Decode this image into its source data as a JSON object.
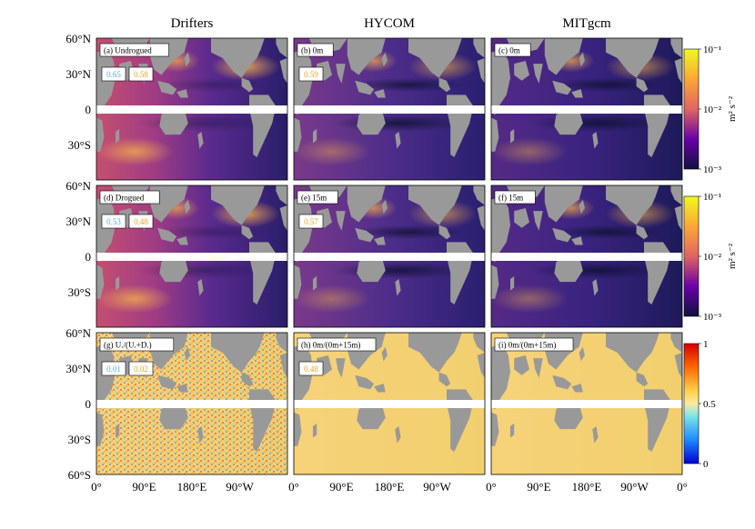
{
  "chart_data": {
    "type": "heatmap",
    "column_titles": [
      "Drifters",
      "HYCOM",
      "MITgcm"
    ],
    "y_ticks": [
      "60°N",
      "30°N",
      "0",
      "30°S",
      "60°S"
    ],
    "x_ticks": [
      "0°",
      "90°E",
      "180°E",
      "90°W",
      "0°"
    ],
    "ylim": [
      -60,
      60
    ],
    "xlim": [
      0,
      360
    ],
    "panels": [
      {
        "label": "(a) Undrogued",
        "row": 0,
        "col": 0,
        "colormap": "plasma_log",
        "stats": [
          {
            "text": "0.65",
            "color": "#5aa9d6"
          },
          {
            "text": "0.58",
            "color": "#e0a326"
          }
        ]
      },
      {
        "label": "(b) 0m",
        "row": 0,
        "col": 1,
        "colormap": "plasma_log",
        "stats": [
          {
            "text": "0.59",
            "color": "#e0a326"
          }
        ]
      },
      {
        "label": "(c) 0m",
        "row": 0,
        "col": 2,
        "colormap": "plasma_log",
        "stats": []
      },
      {
        "label": "(d) Drogued",
        "row": 1,
        "col": 0,
        "colormap": "plasma_log",
        "stats": [
          {
            "text": "0.53",
            "color": "#5aa9d6"
          },
          {
            "text": "0.48",
            "color": "#e0a326"
          }
        ]
      },
      {
        "label": "(e) 15m",
        "row": 1,
        "col": 1,
        "colormap": "plasma_log",
        "stats": [
          {
            "text": "0.57",
            "color": "#e0a326"
          }
        ]
      },
      {
        "label": "(f) 15m",
        "row": 1,
        "col": 2,
        "colormap": "plasma_log",
        "stats": []
      },
      {
        "label": "(g) U./(U.+D.)",
        "row": 2,
        "col": 0,
        "colormap": "jet_ratio",
        "stats": [
          {
            "text": "0.01",
            "color": "#5aa9d6"
          },
          {
            "text": "0.02",
            "color": "#e0a326"
          }
        ]
      },
      {
        "label": "(h) 0m/(0m+15m)",
        "row": 2,
        "col": 1,
        "colormap": "jet_ratio",
        "stats": [
          {
            "text": "0.48",
            "color": "#e0a326"
          }
        ]
      },
      {
        "label": "(i) 0m/(0m+15m)",
        "row": 2,
        "col": 2,
        "colormap": "jet_ratio",
        "stats": []
      }
    ],
    "colorbars": [
      {
        "row": 0,
        "ticks": [
          "10⁻¹",
          "10⁻²",
          "10⁻³"
        ],
        "label": "m² s⁻²",
        "scale": "log",
        "range": [
          0.001,
          0.1
        ]
      },
      {
        "row": 1,
        "ticks": [
          "10⁻¹",
          "10⁻²",
          "10⁻³"
        ],
        "label": "m² s⁻²",
        "scale": "log",
        "range": [
          0.001,
          0.1
        ]
      },
      {
        "row": 2,
        "ticks": [
          "1",
          "0.5",
          "0"
        ],
        "label": "",
        "scale": "linear",
        "range": [
          0,
          1
        ]
      }
    ],
    "equatorial_gap": true,
    "land_color": "#999999"
  }
}
